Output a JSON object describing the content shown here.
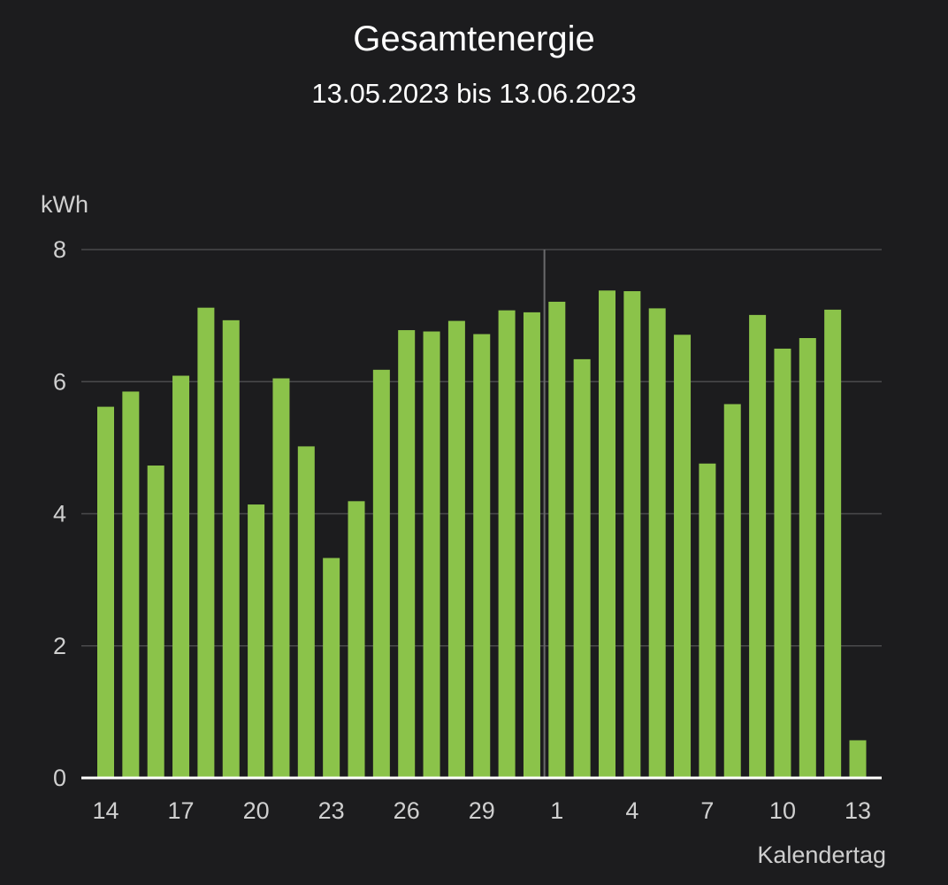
{
  "chart_data": {
    "type": "bar",
    "title": "Gesamtenergie",
    "subtitle": "13.05.2023 bis 13.06.2023",
    "xlabel": "Kalendertag",
    "ylabel": "kWh",
    "ylim": [
      0,
      8
    ],
    "yticks": [
      0,
      2,
      4,
      6,
      8
    ],
    "grid": true,
    "categories": [
      "14",
      "15",
      "16",
      "17",
      "18",
      "19",
      "20",
      "21",
      "22",
      "23",
      "24",
      "25",
      "26",
      "27",
      "28",
      "29",
      "30",
      "31",
      "1",
      "2",
      "3",
      "4",
      "5",
      "6",
      "7",
      "8",
      "9",
      "10",
      "11",
      "12",
      "13"
    ],
    "x_tick_labels": [
      "14",
      "17",
      "20",
      "23",
      "26",
      "29",
      "1",
      "4",
      "7",
      "10",
      "13"
    ],
    "values": [
      5.62,
      5.85,
      4.73,
      6.09,
      7.12,
      6.93,
      4.14,
      6.05,
      5.02,
      3.33,
      4.19,
      6.18,
      6.78,
      6.76,
      6.92,
      6.72,
      7.08,
      7.05,
      7.21,
      6.34,
      7.38,
      7.37,
      7.11,
      6.71,
      4.76,
      5.66,
      7.01,
      6.5,
      6.66,
      7.09,
      0.57
    ],
    "highlight_divider_after_index": 17,
    "bar_color": "#8bc34a",
    "background_color": "#1c1c1e"
  }
}
